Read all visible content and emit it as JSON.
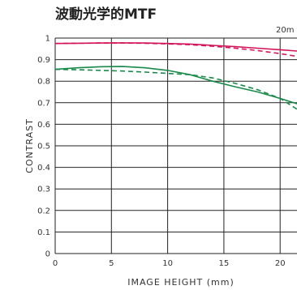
{
  "chart_data": {
    "type": "line",
    "title": "波動光学的MTF",
    "frequency_label": "20m",
    "xlabel": "IMAGE HEIGHT (mm)",
    "ylabel": "CONTRAST",
    "xlim": [
      0,
      21.5
    ],
    "ylim": [
      0,
      1
    ],
    "x_ticks": [
      "0",
      "5",
      "10",
      "15",
      "20"
    ],
    "y_ticks": [
      "0",
      "0.1",
      "0.2",
      "0.3",
      "0.4",
      "0.5",
      "0.6",
      "0.7",
      "0.8",
      "0.9",
      "1"
    ],
    "grid": true,
    "series": [
      {
        "color": "#d4145a",
        "dash": false,
        "x": [
          0,
          2,
          4,
          6,
          8,
          10,
          12,
          14,
          16,
          18,
          20,
          21.5
        ],
        "y": [
          0.975,
          0.976,
          0.977,
          0.978,
          0.977,
          0.975,
          0.972,
          0.966,
          0.96,
          0.953,
          0.946,
          0.94
        ]
      },
      {
        "color": "#d4145a",
        "dash": true,
        "x": [
          0,
          2,
          4,
          6,
          8,
          10,
          12,
          14,
          16,
          18,
          20,
          21.5
        ],
        "y": [
          0.975,
          0.976,
          0.977,
          0.977,
          0.976,
          0.973,
          0.969,
          0.962,
          0.953,
          0.942,
          0.928,
          0.915
        ]
      },
      {
        "color": "#1a8a4a",
        "dash": false,
        "x": [
          0,
          2,
          4,
          6,
          8,
          10,
          12,
          14,
          16,
          18,
          20,
          21.5
        ],
        "y": [
          0.855,
          0.862,
          0.867,
          0.868,
          0.862,
          0.85,
          0.83,
          0.8,
          0.774,
          0.75,
          0.72,
          0.695
        ]
      },
      {
        "color": "#1a8a4a",
        "dash": true,
        "x": [
          0,
          2,
          4,
          6,
          8,
          10,
          12,
          14,
          16,
          18,
          20,
          21.5
        ],
        "y": [
          0.855,
          0.853,
          0.85,
          0.847,
          0.842,
          0.836,
          0.83,
          0.815,
          0.79,
          0.76,
          0.72,
          0.67
        ]
      }
    ]
  }
}
